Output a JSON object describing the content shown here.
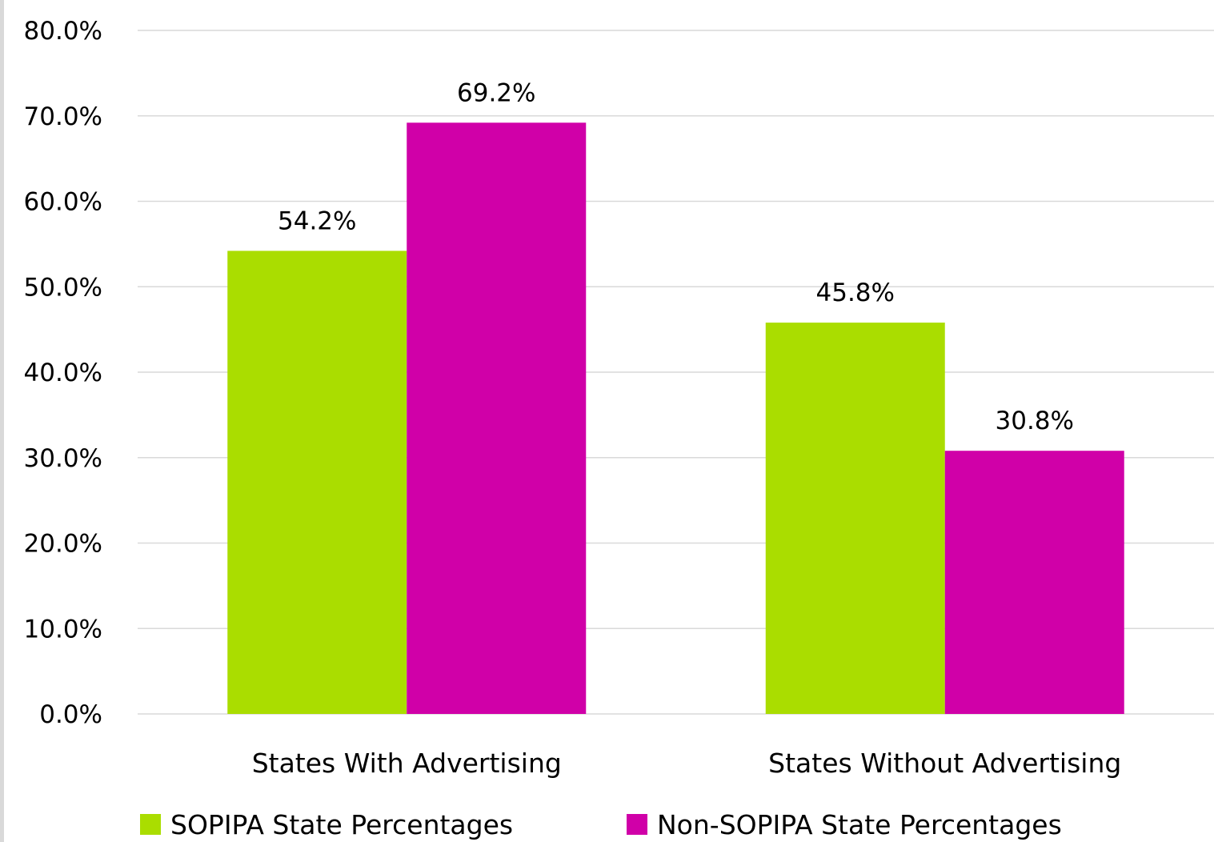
{
  "chart_data": {
    "type": "bar",
    "categories": [
      "States With Advertising",
      "States Without Advertising"
    ],
    "series": [
      {
        "name": "SOPIPA State Percentages",
        "values": [
          54.2,
          45.8
        ],
        "color": "#aadd00",
        "labels": [
          "54.2%",
          "45.8%"
        ]
      },
      {
        "name": "Non-SOPIPA State Percentages",
        "values": [
          69.2,
          30.8
        ],
        "color": "#d000a8",
        "labels": [
          "69.2%",
          "30.8%"
        ]
      }
    ],
    "ylim": [
      0,
      80
    ],
    "yticks": [
      "0.0%",
      "10.0%",
      "20.0%",
      "30.0%",
      "40.0%",
      "50.0%",
      "60.0%",
      "70.0%",
      "80.0%"
    ],
    "grid": true,
    "gridline_color": "#d9d9d9",
    "legend_position": "bottom"
  }
}
